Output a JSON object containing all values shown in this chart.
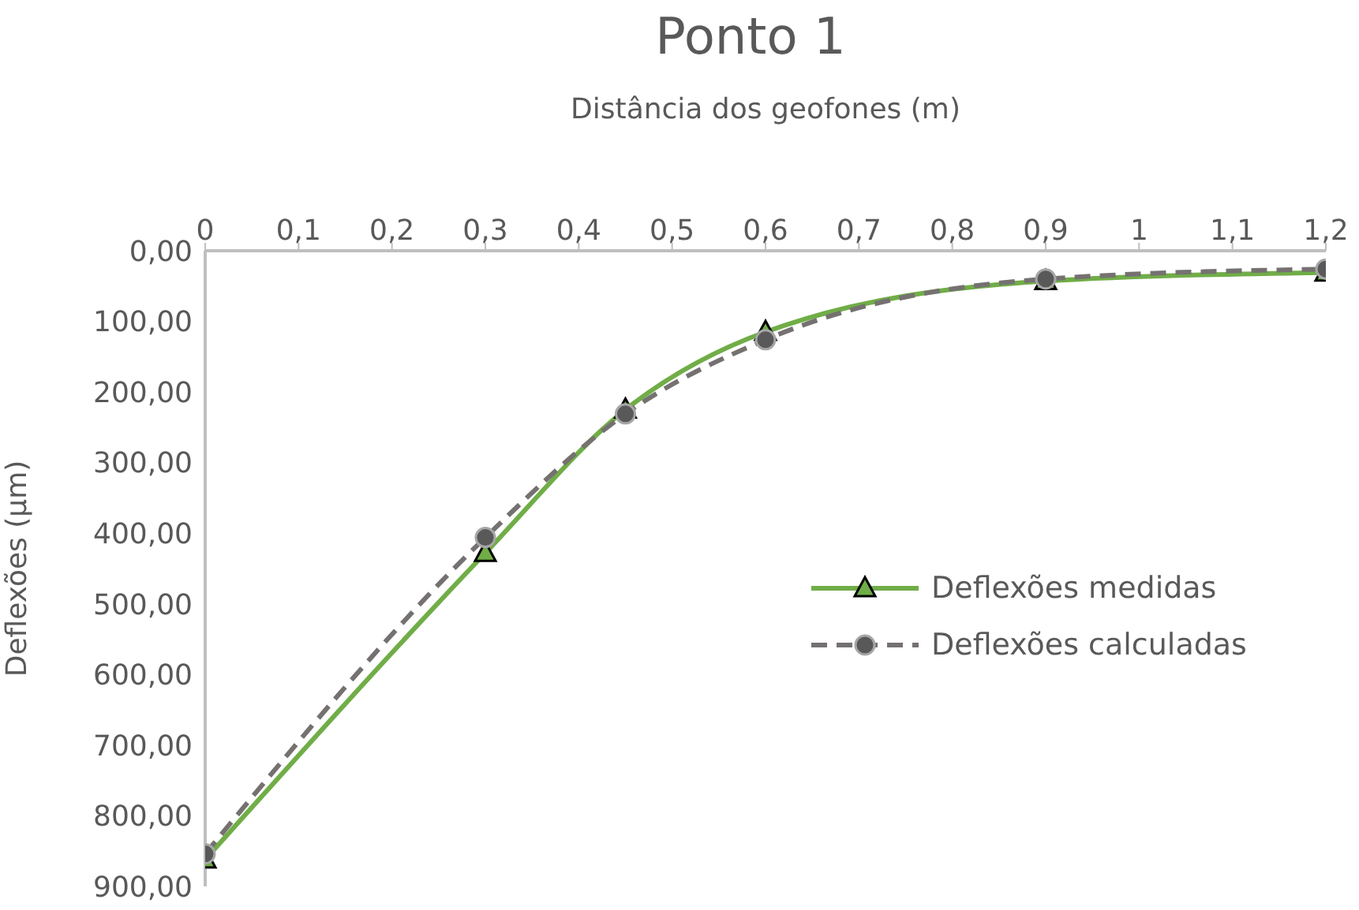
{
  "chart_data": {
    "type": "line",
    "title": "Ponto 1",
    "xlabel": "Distância dos geofones (m)",
    "ylabel": "Deflexões (µm)",
    "x": [
      0,
      0.3,
      0.45,
      0.6,
      0.9,
      1.2
    ],
    "series": [
      {
        "name": "Deflexões medidas",
        "color": "#70ad47",
        "marker": "triangle",
        "line_style": "solid",
        "values": [
          862,
          428,
          225,
          115,
          43,
          31
        ]
      },
      {
        "name": "Deflexões calculadas",
        "color": "#767171",
        "marker": "circle",
        "line_style": "dashed",
        "values": [
          854,
          406,
          231,
          126,
          40,
          26
        ]
      }
    ],
    "xlim": [
      0,
      1.2
    ],
    "xticks": [
      0,
      {
        "value": 0.1,
        "label": "0,1"
      },
      {
        "value": 0.2,
        "label": "0,2"
      },
      {
        "value": 0.3,
        "label": "0,3"
      },
      {
        "value": 0.4,
        "label": "0,4"
      },
      {
        "value": 0.5,
        "label": "0,5"
      },
      {
        "value": 0.6,
        "label": "0,6"
      },
      {
        "value": 0.7,
        "label": "0,7"
      },
      {
        "value": 0.8,
        "label": "0,8"
      },
      {
        "value": 0.9,
        "label": "0,9"
      },
      1,
      {
        "value": 1.1,
        "label": "1,1"
      },
      {
        "value": 1.2,
        "label": "1,2"
      }
    ],
    "ylim": [
      900,
      0
    ],
    "yticks": [
      {
        "value": 0,
        "label": "0,00"
      },
      {
        "value": 100,
        "label": "100,00"
      },
      {
        "value": 200,
        "label": "200,00"
      },
      {
        "value": 300,
        "label": "300,00"
      },
      {
        "value": 400,
        "label": "400,00"
      },
      {
        "value": 500,
        "label": "500,00"
      },
      {
        "value": 600,
        "label": "600,00"
      },
      {
        "value": 700,
        "label": "700,00"
      },
      {
        "value": 800,
        "label": "800,00"
      },
      {
        "value": 900,
        "label": "900,00"
      }
    ],
    "grid": false,
    "legend": "right"
  }
}
